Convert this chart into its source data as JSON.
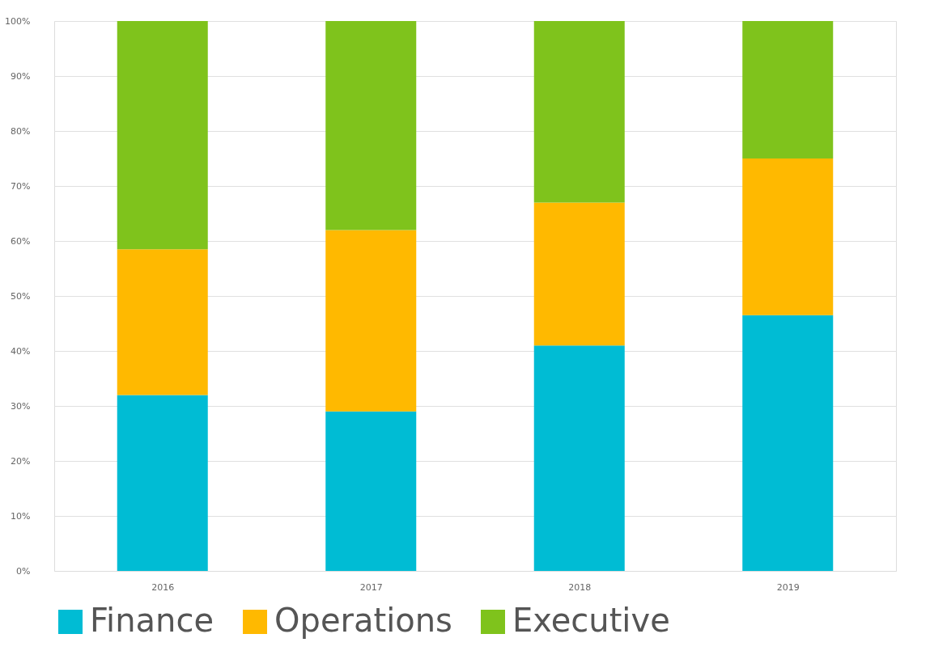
{
  "chart_data": {
    "type": "bar",
    "stacked": true,
    "categories": [
      "2016",
      "2017",
      "2018",
      "2019"
    ],
    "series": [
      {
        "name": "Finance",
        "color": "#00bcd4",
        "values": [
          32,
          29,
          41,
          46.5
        ]
      },
      {
        "name": "Operations",
        "color": "#ffb900",
        "values": [
          26.5,
          33,
          26,
          28.5
        ]
      },
      {
        "name": "Executive",
        "color": "#7fc31c",
        "values": [
          41.5,
          38,
          33,
          25
        ]
      }
    ],
    "ylim": [
      0,
      100
    ],
    "yticks": [
      {
        "value": 0,
        "label": "0%"
      },
      {
        "value": 10,
        "label": "10%"
      },
      {
        "value": 20,
        "label": "20%"
      },
      {
        "value": 30,
        "label": "30%"
      },
      {
        "value": 40,
        "label": "40%"
      },
      {
        "value": 50,
        "label": "50%"
      },
      {
        "value": 60,
        "label": "60%"
      },
      {
        "value": 70,
        "label": "70%"
      },
      {
        "value": 80,
        "label": "80%"
      },
      {
        "value": 90,
        "label": "90%"
      },
      {
        "value": 100,
        "label": "100%"
      }
    ],
    "grid": "y",
    "legend": "bottom"
  }
}
